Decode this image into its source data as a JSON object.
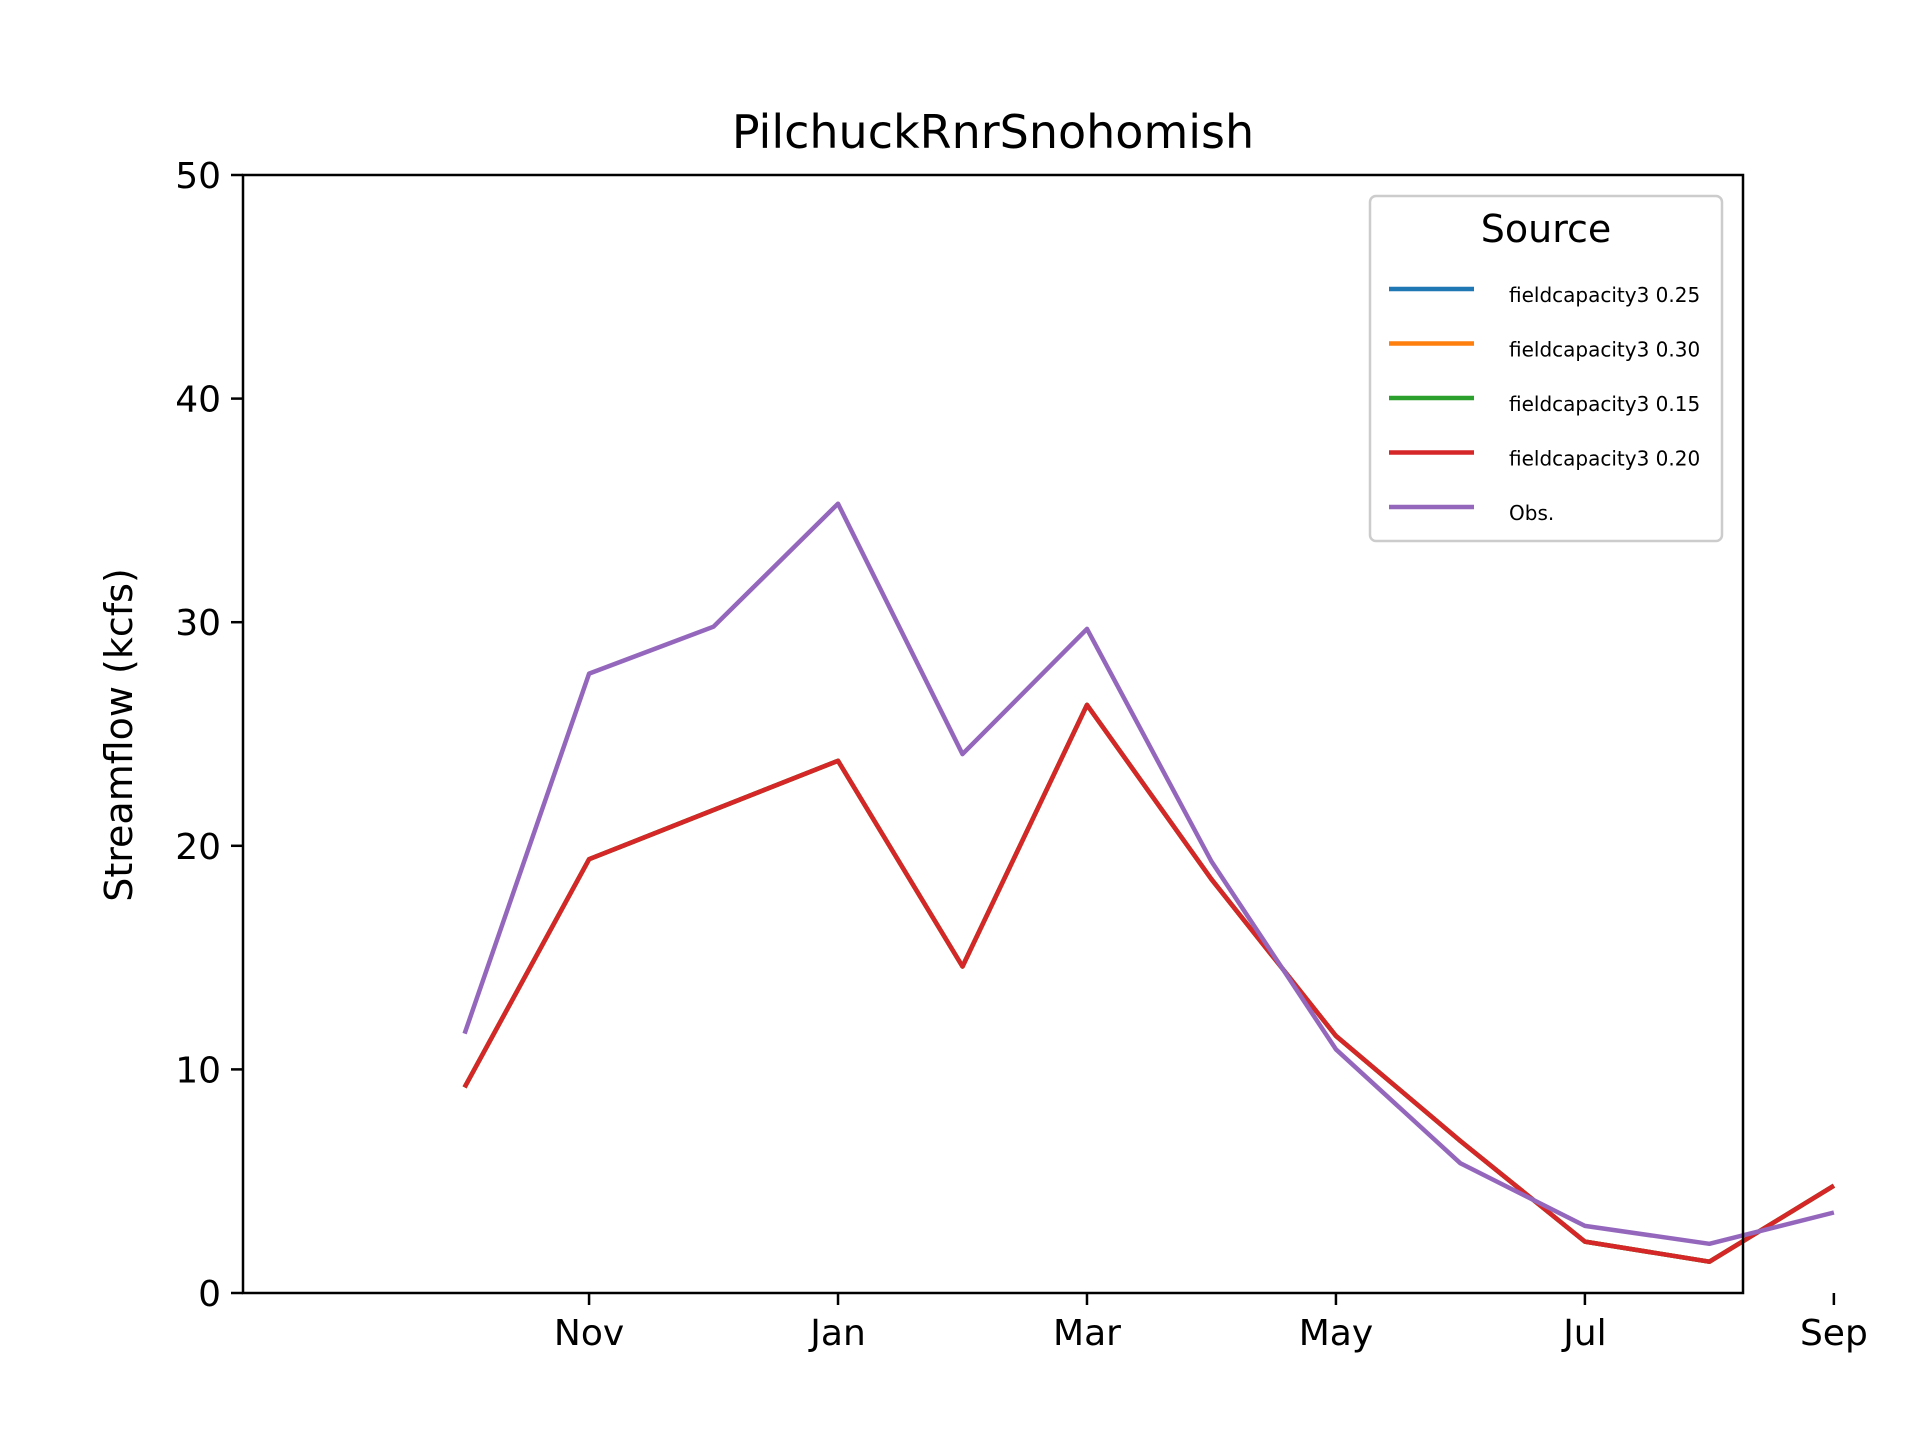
{
  "chart_data": {
    "type": "line",
    "title": "PilchuckRnrSnohomish",
    "xlabel": "",
    "ylabel": "Streamflow (kcfs)",
    "ylim": [
      0,
      50
    ],
    "xlim": [
      8.22,
      20.27
    ],
    "yticks": [
      0,
      10,
      20,
      30,
      40,
      50
    ],
    "xticks": [
      {
        "label": "Nov",
        "x": 11
      },
      {
        "label": "Jan",
        "x": 13
      },
      {
        "label": "Mar",
        "x": 15
      },
      {
        "label": "May",
        "x": 17
      },
      {
        "label": "Jul",
        "x": 19
      },
      {
        "label": "Sep",
        "x": 21
      }
    ],
    "x": [
      10,
      11,
      12,
      13,
      14,
      15,
      16,
      17,
      18,
      19,
      20,
      21
    ],
    "grid": false,
    "legend": {
      "title": "Source",
      "placement": "top-right"
    },
    "series": [
      {
        "name": "fieldcapacity3 0.25",
        "color": "#1f77b4",
        "values": [
          9.2,
          19.4,
          21.6,
          23.8,
          14.6,
          26.3,
          18.5,
          11.5,
          6.8,
          2.3,
          1.4,
          4.8
        ]
      },
      {
        "name": "fieldcapacity3 0.30",
        "color": "#ff7f0e",
        "values": [
          9.2,
          19.4,
          21.6,
          23.8,
          14.6,
          26.3,
          18.5,
          11.5,
          6.8,
          2.3,
          1.4,
          4.8
        ]
      },
      {
        "name": "fieldcapacity3 0.15",
        "color": "#2ca02c",
        "values": [
          9.2,
          19.4,
          21.6,
          23.8,
          14.6,
          26.3,
          18.5,
          11.5,
          6.8,
          2.3,
          1.4,
          4.8
        ]
      },
      {
        "name": "fieldcapacity3 0.20",
        "color": "#d62728",
        "values": [
          9.2,
          19.4,
          21.6,
          23.8,
          14.6,
          26.3,
          18.5,
          11.5,
          6.8,
          2.3,
          1.4,
          4.8
        ]
      },
      {
        "name": "Obs.",
        "color": "#9467bd",
        "values": [
          11.6,
          27.7,
          29.8,
          35.3,
          24.1,
          29.7,
          19.3,
          10.9,
          5.8,
          3.0,
          2.2,
          3.6
        ]
      }
    ]
  }
}
